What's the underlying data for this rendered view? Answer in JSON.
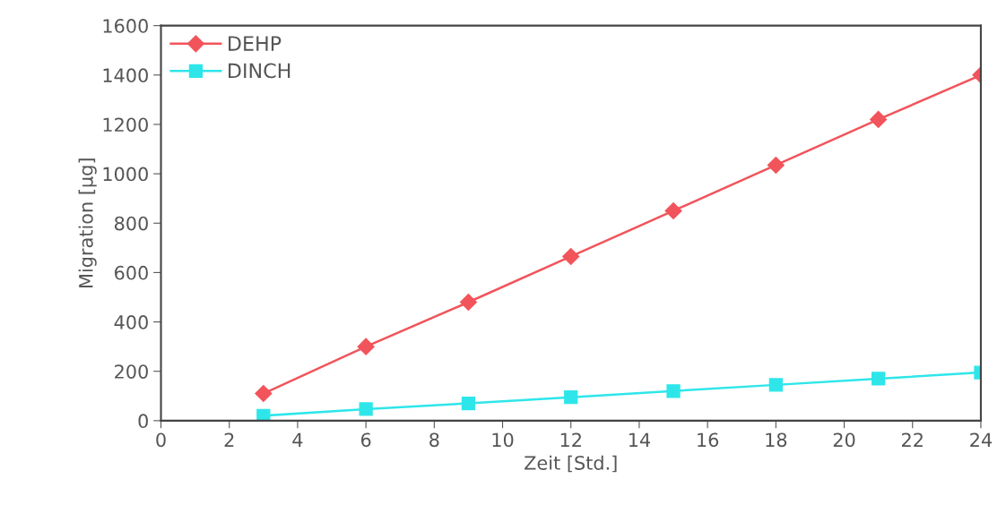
{
  "chart_data": {
    "type": "line",
    "xlabel": "Zeit [Std.]",
    "ylabel": "Migration [µg]",
    "x": [
      3,
      6,
      9,
      12,
      15,
      18,
      21,
      24
    ],
    "series": [
      {
        "name": "DEHP",
        "color": "#f2545b",
        "marker": "diamond",
        "values": [
          110,
          300,
          480,
          665,
          850,
          1035,
          1220,
          1400
        ]
      },
      {
        "name": "DINCH",
        "color": "#2ee6ea",
        "marker": "square",
        "values": [
          20,
          47,
          70,
          95,
          120,
          145,
          170,
          195
        ]
      }
    ],
    "xlim": [
      0,
      24
    ],
    "xticks": [
      0,
      2,
      4,
      6,
      8,
      10,
      12,
      14,
      16,
      18,
      20,
      22,
      24
    ],
    "ylim": [
      0,
      1600
    ],
    "yticks": [
      0,
      200,
      400,
      600,
      800,
      1000,
      1200,
      1400,
      1600
    ],
    "grid": false,
    "legend": "top left",
    "line_style": "solid"
  }
}
